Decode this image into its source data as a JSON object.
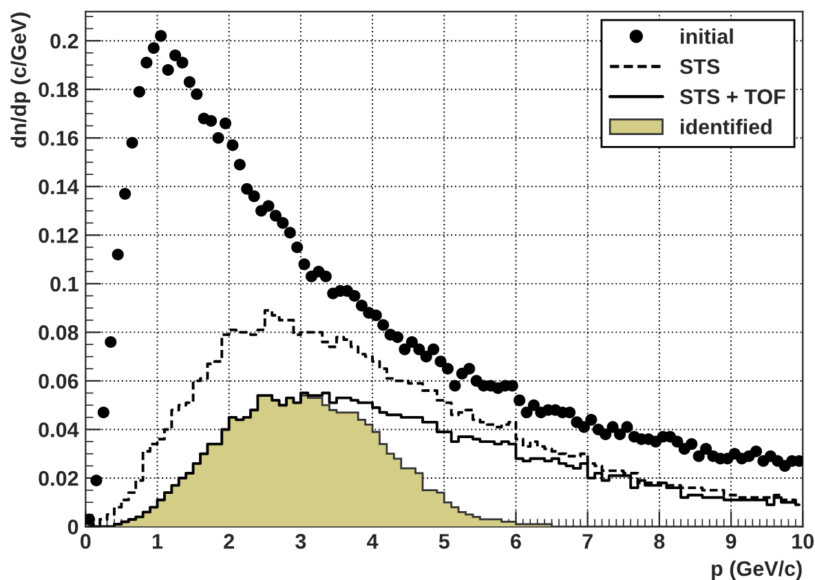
{
  "chart_data": {
    "type": "histogram",
    "xlabel": "p (GeV/c)",
    "ylabel": "dn/dp (c/GeV)",
    "xlim": [
      0,
      10
    ],
    "ylim": [
      0,
      0.212
    ],
    "xticks": [
      0,
      1,
      2,
      3,
      4,
      5,
      6,
      7,
      8,
      9,
      10
    ],
    "yticks": [
      0,
      0.02,
      0.04,
      0.06,
      0.08,
      0.1,
      0.12,
      0.14,
      0.16,
      0.18,
      0.2
    ],
    "grid": true,
    "legend": "top right",
    "bins": [
      0,
      0.1,
      0.2,
      0.3,
      0.4,
      0.5,
      0.6,
      0.7,
      0.8,
      0.9,
      1,
      1.1,
      1.2,
      1.3,
      1.4,
      1.5,
      1.6,
      1.7,
      1.8,
      1.9,
      2,
      2.1,
      2.2,
      2.3,
      2.4,
      2.5,
      2.6,
      2.7,
      2.8,
      2.9,
      3,
      3.1,
      3.2,
      3.3,
      3.4,
      3.5,
      3.6,
      3.7,
      3.8,
      3.9,
      4,
      4.1,
      4.2,
      4.3,
      4.4,
      4.5,
      4.6,
      4.7,
      4.8,
      4.9,
      5,
      5.1,
      5.2,
      5.3,
      5.4,
      5.5,
      5.6,
      5.7,
      5.8,
      5.9,
      6,
      6.1,
      6.2,
      6.3,
      6.4,
      6.5,
      6.6,
      6.7,
      6.8,
      6.9,
      7,
      7.1,
      7.2,
      7.3,
      7.4,
      7.5,
      7.6,
      7.7,
      7.8,
      7.9,
      8,
      8.1,
      8.2,
      8.3,
      8.4,
      8.5,
      8.6,
      8.7,
      8.8,
      8.9,
      9,
      9.1,
      9.2,
      9.3,
      9.4,
      9.5,
      9.6,
      9.7,
      9.8,
      9.9,
      10
    ],
    "series": [
      {
        "name": "initial",
        "type": "scatter",
        "marker": "circle",
        "color": "#000000",
        "x": [
          0.05,
          0.15,
          0.25,
          0.35,
          0.45,
          0.55,
          0.65,
          0.75,
          0.85,
          0.95,
          1.05,
          1.15,
          1.25,
          1.35,
          1.45,
          1.55,
          1.65,
          1.75,
          1.85,
          1.95,
          2.05,
          2.15,
          2.25,
          2.35,
          2.45,
          2.55,
          2.65,
          2.75,
          2.85,
          2.95,
          3.05,
          3.15,
          3.25,
          3.35,
          3.45,
          3.55,
          3.65,
          3.75,
          3.85,
          3.95,
          4.05,
          4.15,
          4.25,
          4.35,
          4.45,
          4.55,
          4.65,
          4.75,
          4.85,
          4.95,
          5.05,
          5.15,
          5.25,
          5.35,
          5.45,
          5.55,
          5.65,
          5.75,
          5.85,
          5.95,
          6.05,
          6.15,
          6.25,
          6.35,
          6.45,
          6.55,
          6.65,
          6.75,
          6.85,
          6.95,
          7.05,
          7.15,
          7.25,
          7.35,
          7.45,
          7.55,
          7.65,
          7.75,
          7.85,
          7.95,
          8.05,
          8.15,
          8.25,
          8.35,
          8.45,
          8.55,
          8.65,
          8.75,
          8.85,
          8.95,
          9.05,
          9.15,
          9.25,
          9.35,
          9.45,
          9.55,
          9.65,
          9.75,
          9.85,
          9.95
        ],
        "values": [
          0.003,
          0.019,
          0.047,
          0.076,
          0.112,
          0.137,
          0.158,
          0.179,
          0.191,
          0.197,
          0.202,
          0.188,
          0.194,
          0.191,
          0.183,
          0.178,
          0.168,
          0.167,
          0.16,
          0.166,
          0.157,
          0.149,
          0.139,
          0.136,
          0.13,
          0.132,
          0.128,
          0.125,
          0.121,
          0.115,
          0.108,
          0.103,
          0.105,
          0.103,
          0.096,
          0.097,
          0.097,
          0.095,
          0.091,
          0.088,
          0.087,
          0.083,
          0.079,
          0.078,
          0.073,
          0.076,
          0.073,
          0.07,
          0.073,
          0.068,
          0.065,
          0.058,
          0.063,
          0.065,
          0.06,
          0.058,
          0.058,
          0.057,
          0.058,
          0.058,
          0.052,
          0.047,
          0.05,
          0.047,
          0.048,
          0.048,
          0.047,
          0.047,
          0.043,
          0.041,
          0.044,
          0.04,
          0.038,
          0.041,
          0.038,
          0.041,
          0.037,
          0.036,
          0.036,
          0.035,
          0.037,
          0.037,
          0.035,
          0.032,
          0.034,
          0.029,
          0.032,
          0.029,
          0.028,
          0.028,
          0.03,
          0.028,
          0.029,
          0.031,
          0.027,
          0.029,
          0.027,
          0.025,
          0.027,
          0.027
        ]
      },
      {
        "name": "STS",
        "type": "step",
        "line_style": "dashed",
        "color": "#000000",
        "x": [
          0.05,
          0.15,
          0.25,
          0.35,
          0.45,
          0.55,
          0.65,
          0.75,
          0.85,
          0.95,
          1.05,
          1.15,
          1.25,
          1.35,
          1.45,
          1.55,
          1.65,
          1.75,
          1.85,
          1.95,
          2.05,
          2.15,
          2.25,
          2.35,
          2.45,
          2.55,
          2.65,
          2.75,
          2.85,
          2.95,
          3.05,
          3.15,
          3.25,
          3.35,
          3.45,
          3.55,
          3.65,
          3.75,
          3.85,
          3.95,
          4.05,
          4.15,
          4.25,
          4.35,
          4.45,
          4.55,
          4.65,
          4.75,
          4.85,
          4.95,
          5.05,
          5.15,
          5.25,
          5.35,
          5.45,
          5.55,
          5.65,
          5.75,
          5.85,
          5.95,
          6.05,
          6.15,
          6.25,
          6.35,
          6.45,
          6.55,
          6.65,
          6.75,
          6.85,
          6.95,
          7.05,
          7.15,
          7.25,
          7.35,
          7.45,
          7.55,
          7.65,
          7.75,
          7.85,
          7.95,
          8.05,
          8.15,
          8.25,
          8.35,
          8.45,
          8.55,
          8.65,
          8.75,
          8.85,
          8.95,
          9.05,
          9.15,
          9.25,
          9.35,
          9.45,
          9.55,
          9.65,
          9.75,
          9.85,
          9.95
        ],
        "values": [
          0.0,
          0.001,
          0.003,
          0.005,
          0.008,
          0.011,
          0.014,
          0.019,
          0.031,
          0.034,
          0.036,
          0.04,
          0.048,
          0.05,
          0.051,
          0.06,
          0.061,
          0.067,
          0.068,
          0.079,
          0.081,
          0.08,
          0.08,
          0.079,
          0.081,
          0.089,
          0.087,
          0.085,
          0.085,
          0.079,
          0.08,
          0.08,
          0.08,
          0.076,
          0.074,
          0.078,
          0.077,
          0.074,
          0.071,
          0.07,
          0.068,
          0.065,
          0.061,
          0.06,
          0.06,
          0.059,
          0.059,
          0.056,
          0.056,
          0.052,
          0.051,
          0.046,
          0.047,
          0.048,
          0.044,
          0.043,
          0.042,
          0.041,
          0.042,
          0.043,
          0.036,
          0.033,
          0.035,
          0.033,
          0.032,
          0.031,
          0.03,
          0.029,
          0.029,
          0.03,
          0.026,
          0.025,
          0.023,
          0.023,
          0.023,
          0.022,
          0.022,
          0.018,
          0.018,
          0.018,
          0.017,
          0.017,
          0.017,
          0.016,
          0.016,
          0.016,
          0.015,
          0.015,
          0.015,
          0.013,
          0.013,
          0.012,
          0.012,
          0.012,
          0.012,
          0.012,
          0.013,
          0.011,
          0.011,
          0.01
        ]
      },
      {
        "name": "STS + TOF",
        "type": "step",
        "line_style": "solid",
        "color": "#000000",
        "x": [
          0.05,
          0.15,
          0.25,
          0.35,
          0.45,
          0.55,
          0.65,
          0.75,
          0.85,
          0.95,
          1.05,
          1.15,
          1.25,
          1.35,
          1.45,
          1.55,
          1.65,
          1.75,
          1.85,
          1.95,
          2.05,
          2.15,
          2.25,
          2.35,
          2.45,
          2.55,
          2.65,
          2.75,
          2.85,
          2.95,
          3.05,
          3.15,
          3.25,
          3.35,
          3.45,
          3.55,
          3.65,
          3.75,
          3.85,
          3.95,
          4.05,
          4.15,
          4.25,
          4.35,
          4.45,
          4.55,
          4.65,
          4.75,
          4.85,
          4.95,
          5.05,
          5.15,
          5.25,
          5.35,
          5.45,
          5.55,
          5.65,
          5.75,
          5.85,
          5.95,
          6.05,
          6.15,
          6.25,
          6.35,
          6.45,
          6.55,
          6.65,
          6.75,
          6.85,
          6.95,
          7.05,
          7.15,
          7.25,
          7.35,
          7.45,
          7.55,
          7.65,
          7.75,
          7.85,
          7.95,
          8.05,
          8.15,
          8.25,
          8.35,
          8.45,
          8.55,
          8.65,
          8.75,
          8.85,
          8.95,
          9.05,
          9.15,
          9.25,
          9.35,
          9.45,
          9.55,
          9.65,
          9.75,
          9.85,
          9.95
        ],
        "values": [
          0.0,
          0.0,
          0.0,
          0.0,
          0.001,
          0.002,
          0.003,
          0.004,
          0.006,
          0.008,
          0.011,
          0.014,
          0.017,
          0.02,
          0.022,
          0.026,
          0.03,
          0.034,
          0.034,
          0.04,
          0.045,
          0.044,
          0.045,
          0.048,
          0.054,
          0.054,
          0.052,
          0.05,
          0.053,
          0.051,
          0.055,
          0.054,
          0.054,
          0.055,
          0.051,
          0.053,
          0.053,
          0.052,
          0.051,
          0.051,
          0.049,
          0.047,
          0.046,
          0.046,
          0.045,
          0.045,
          0.045,
          0.043,
          0.043,
          0.039,
          0.039,
          0.035,
          0.037,
          0.037,
          0.036,
          0.035,
          0.035,
          0.034,
          0.035,
          0.034,
          0.028,
          0.027,
          0.028,
          0.028,
          0.027,
          0.028,
          0.026,
          0.025,
          0.024,
          0.026,
          0.02,
          0.022,
          0.019,
          0.021,
          0.021,
          0.021,
          0.016,
          0.019,
          0.017,
          0.017,
          0.018,
          0.016,
          0.016,
          0.012,
          0.013,
          0.013,
          0.012,
          0.012,
          0.012,
          0.011,
          0.011,
          0.011,
          0.011,
          0.011,
          0.011,
          0.009,
          0.012,
          0.01,
          0.01,
          0.009
        ]
      },
      {
        "name": "identified",
        "type": "histogram",
        "color": "#d3cd86",
        "values": [
          0.0,
          0.0,
          0.0,
          0.0,
          0.001,
          0.002,
          0.003,
          0.004,
          0.006,
          0.008,
          0.011,
          0.014,
          0.017,
          0.02,
          0.022,
          0.026,
          0.03,
          0.034,
          0.034,
          0.04,
          0.045,
          0.044,
          0.045,
          0.048,
          0.054,
          0.054,
          0.052,
          0.05,
          0.053,
          0.051,
          0.054,
          0.053,
          0.053,
          0.05,
          0.048,
          0.047,
          0.047,
          0.047,
          0.044,
          0.042,
          0.039,
          0.034,
          0.03,
          0.028,
          0.024,
          0.024,
          0.022,
          0.015,
          0.015,
          0.014,
          0.01,
          0.008,
          0.006,
          0.005,
          0.004,
          0.003,
          0.003,
          0.003,
          0.002,
          0.002,
          0.001,
          0.001,
          0.001,
          0.001,
          0.001,
          0,
          0,
          0,
          0,
          0,
          0,
          0,
          0,
          0,
          0,
          0,
          0,
          0,
          0,
          0,
          0,
          0,
          0,
          0,
          0,
          0,
          0,
          0,
          0,
          0,
          0,
          0,
          0,
          0,
          0,
          0,
          0,
          0,
          0,
          0
        ]
      }
    ]
  }
}
